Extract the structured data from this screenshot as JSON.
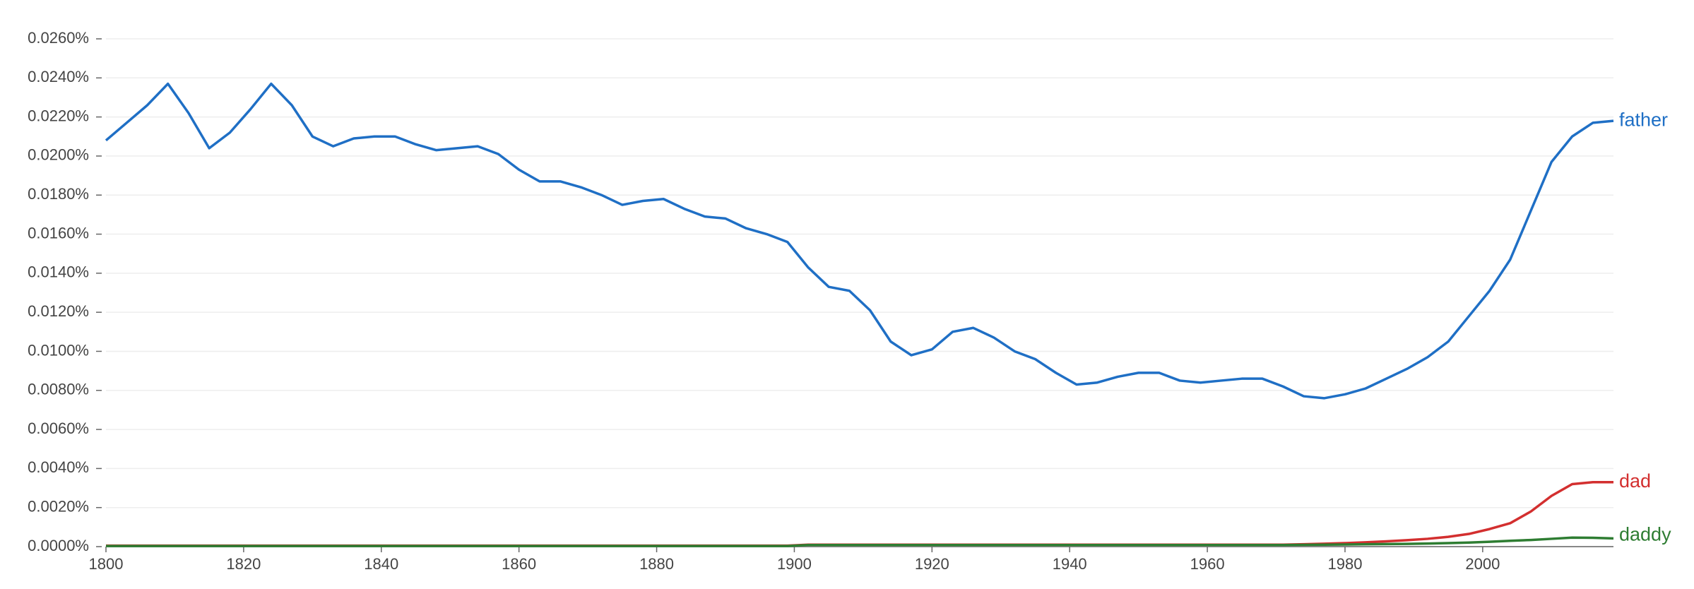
{
  "chart_data": {
    "type": "line",
    "x": [
      1800,
      1803,
      1806,
      1809,
      1812,
      1815,
      1818,
      1821,
      1824,
      1827,
      1830,
      1833,
      1836,
      1839,
      1842,
      1845,
      1848,
      1851,
      1854,
      1857,
      1860,
      1863,
      1866,
      1869,
      1872,
      1875,
      1878,
      1881,
      1884,
      1887,
      1890,
      1893,
      1896,
      1899,
      1902,
      1905,
      1908,
      1911,
      1914,
      1917,
      1920,
      1923,
      1926,
      1929,
      1932,
      1935,
      1938,
      1941,
      1944,
      1947,
      1950,
      1953,
      1956,
      1959,
      1962,
      1965,
      1968,
      1971,
      1974,
      1977,
      1980,
      1983,
      1986,
      1989,
      1992,
      1995,
      1998,
      2001,
      2004,
      2007,
      2010,
      2013,
      2016,
      2019
    ],
    "series": [
      {
        "name": "father",
        "color": "#1f6fc5",
        "values": [
          0.0208,
          0.0217,
          0.0226,
          0.0237,
          0.0222,
          0.0204,
          0.0212,
          0.0224,
          0.0237,
          0.0226,
          0.021,
          0.0205,
          0.0209,
          0.021,
          0.021,
          0.0206,
          0.0203,
          0.0204,
          0.0205,
          0.0201,
          0.0193,
          0.0187,
          0.0187,
          0.0184,
          0.018,
          0.0175,
          0.0177,
          0.0178,
          0.0173,
          0.0169,
          0.0168,
          0.0163,
          0.016,
          0.0156,
          0.0143,
          0.0133,
          0.0131,
          0.0121,
          0.0105,
          0.0098,
          0.0101,
          0.011,
          0.0112,
          0.0107,
          0.01,
          0.0096,
          0.0089,
          0.0083,
          0.0084,
          0.0087,
          0.0089,
          0.0089,
          0.0085,
          0.0084,
          0.0085,
          0.0086,
          0.0086,
          0.0082,
          0.0077,
          0.0076,
          0.0078,
          0.0081,
          0.0086,
          0.0091,
          0.0097,
          0.0105,
          0.0118,
          0.0131,
          0.0147,
          0.0172,
          0.0197,
          0.021,
          0.0217,
          0.0218
        ]
      },
      {
        "name": "dad",
        "color": "#d32f2f",
        "values": [
          5e-05,
          5e-05,
          5e-05,
          5e-05,
          5e-05,
          5e-05,
          5e-05,
          5e-05,
          5e-05,
          5e-05,
          5e-05,
          5e-05,
          5e-05,
          5e-05,
          5e-05,
          5e-05,
          5e-05,
          5e-05,
          5e-05,
          5e-05,
          5e-05,
          5e-05,
          5e-05,
          5e-05,
          5e-05,
          5e-05,
          5e-05,
          5e-05,
          5e-05,
          5e-05,
          5e-05,
          5e-05,
          5e-05,
          5e-05,
          0.0001,
          0.0001,
          0.0001,
          0.0001,
          0.0001,
          0.0001,
          0.0001,
          0.0001,
          0.0001,
          0.0001,
          0.0001,
          0.0001,
          0.0001,
          0.0001,
          0.0001,
          0.0001,
          0.0001,
          0.0001,
          0.0001,
          0.0001,
          0.0001,
          0.0001,
          0.0001,
          0.0001,
          0.00012,
          0.00015,
          0.00018,
          0.00022,
          0.00027,
          0.00033,
          0.0004,
          0.0005,
          0.00065,
          0.0009,
          0.0012,
          0.0018,
          0.0026,
          0.0032,
          0.0033,
          0.0033
        ]
      },
      {
        "name": "daddy",
        "color": "#2e7d32",
        "values": [
          3e-05,
          3e-05,
          3e-05,
          3e-05,
          3e-05,
          3e-05,
          3e-05,
          3e-05,
          3e-05,
          3e-05,
          3e-05,
          3e-05,
          3e-05,
          3e-05,
          3e-05,
          3e-05,
          3e-05,
          3e-05,
          3e-05,
          3e-05,
          3e-05,
          3e-05,
          3e-05,
          3e-05,
          3e-05,
          3e-05,
          3e-05,
          3e-05,
          3e-05,
          3e-05,
          3e-05,
          3e-05,
          3e-05,
          3e-05,
          8e-05,
          8e-05,
          8e-05,
          8e-05,
          8e-05,
          8e-05,
          8e-05,
          8e-05,
          8e-05,
          8e-05,
          8e-05,
          8e-05,
          8e-05,
          8e-05,
          8e-05,
          8e-05,
          8e-05,
          8e-05,
          8e-05,
          8e-05,
          8e-05,
          8e-05,
          8e-05,
          8e-05,
          9e-05,
          0.0001,
          0.00011,
          0.00012,
          0.00013,
          0.00014,
          0.00016,
          0.00018,
          0.00021,
          0.00025,
          0.0003,
          0.00034,
          0.0004,
          0.00046,
          0.00045,
          0.00042
        ]
      }
    ],
    "xlim": [
      1800,
      2019
    ],
    "xticks": [
      1800,
      1820,
      1840,
      1860,
      1880,
      1900,
      1920,
      1940,
      1960,
      1980,
      2000
    ],
    "ylim": [
      0,
      0.026
    ],
    "yticks": [
      {
        "value": 0,
        "label": "0.0000%"
      },
      {
        "value": 0.002,
        "label": "0.0020%"
      },
      {
        "value": 0.004,
        "label": "0.0040%"
      },
      {
        "value": 0.006,
        "label": "0.0060%"
      },
      {
        "value": 0.008,
        "label": "0.0080%"
      },
      {
        "value": 0.01,
        "label": "0.0100%"
      },
      {
        "value": 0.012,
        "label": "0.0120%"
      },
      {
        "value": 0.014,
        "label": "0.0140%"
      },
      {
        "value": 0.016,
        "label": "0.0160%"
      },
      {
        "value": 0.018,
        "label": "0.0180%"
      },
      {
        "value": 0.02,
        "label": "0.0200%"
      },
      {
        "value": 0.022,
        "label": "0.0220%"
      },
      {
        "value": 0.024,
        "label": "0.0240%"
      },
      {
        "value": 0.026,
        "label": "0.0260%"
      }
    ],
    "grid": true
  }
}
